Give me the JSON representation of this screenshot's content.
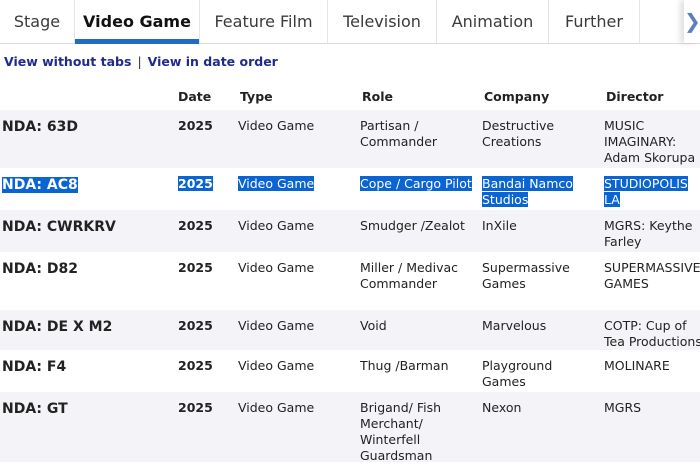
{
  "tabs": [
    {
      "label": "Stage"
    },
    {
      "label": "Video Game",
      "active": true
    },
    {
      "label": "Feature Film"
    },
    {
      "label": "Television"
    },
    {
      "label": "Animation"
    },
    {
      "label": "Further"
    }
  ],
  "next_icon": "chevron-right-icon",
  "links": {
    "without_tabs": "View without tabs",
    "separator": "|",
    "date_order": "View in date order"
  },
  "table": {
    "headers": {
      "date": "Date",
      "type": "Type",
      "role": "Role",
      "company": "Company",
      "director": "Director"
    },
    "rows": [
      {
        "title": "NDA: 63D",
        "date": "2025",
        "type": "Video Game",
        "role": "Partisan / Commander",
        "company": "Destructive Creations",
        "director": "MUSIC IMAGINARY: Adam Skorupa"
      },
      {
        "title": "NDA: AC8",
        "date": "2025",
        "type": "Video Game",
        "role": "Cope / Cargo Pilot",
        "company": "Bandai Namco Studios",
        "director": "STUDIOPOLIS LA",
        "selected": true
      },
      {
        "title": "NDA: CWRKRV",
        "date": "2025",
        "type": "Video Game",
        "role": "Smudger /Zealot",
        "company": "InXile",
        "director": "MGRS: Keythe Farley"
      },
      {
        "title": "NDA: D82",
        "date": "2025",
        "type": "Video Game",
        "role": "Miller / Medivac Commander",
        "company": "Supermassive Games",
        "director": "SUPERMASSIVE GAMES"
      },
      {
        "title": "NDA: DE X M2",
        "date": "2025",
        "type": "Video Game",
        "role": "Void",
        "company": "Marvelous",
        "director": "COTP: Cup of Tea Productions"
      },
      {
        "title": "NDA: F4",
        "date": "2025",
        "type": "Video Game",
        "role": "Thug /Barman",
        "company": "Playground Games",
        "director": "MOLINARE"
      },
      {
        "title": "NDA: GT",
        "date": "2025",
        "type": "Video Game",
        "role": "Brigand/ Fish Merchant/ Winterfell Guardsman",
        "company": "Nexon",
        "director": "MGRS"
      }
    ]
  },
  "colors": {
    "accent": "#1f6dbf",
    "link": "#1e2b8c",
    "selection": "#0a64d2",
    "row_alt": "#f4f4f8"
  }
}
